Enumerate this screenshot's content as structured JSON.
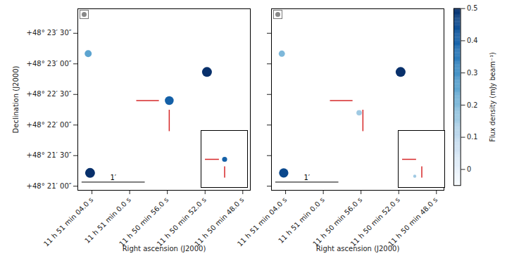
{
  "chart_data": {
    "type": "heatmap",
    "xlabel": "Right ascension (J2000)",
    "ylabel": "Declination (J2000)",
    "xlim": [
      65.5,
      47.2
    ],
    "ylim": [
      1256,
      1434
    ],
    "xticks": [
      {
        "value": 64,
        "label": "11 h 51 min 04.0 s"
      },
      {
        "value": 60,
        "label": "11 h 51 min 0.0 s"
      },
      {
        "value": 56,
        "label": "11 h 50 min 56.0 s"
      },
      {
        "value": 52,
        "label": "11 h 50 min 52.0 s"
      },
      {
        "value": 48,
        "label": "11 h 50 min 48.0 s"
      }
    ],
    "yticks": [
      {
        "value": 1410,
        "label": "+48° 23′ 30″"
      },
      {
        "value": 1380,
        "label": "+48° 23′ 00″"
      },
      {
        "value": 1350,
        "label": "+48° 22′ 30″"
      },
      {
        "value": 1320,
        "label": "+48° 22′ 00″"
      },
      {
        "value": 1290,
        "label": "+48° 21′ 30″"
      },
      {
        "value": 1260,
        "label": "+48° 21′ 00″"
      }
    ],
    "colorbar": {
      "label": "Flux density (mJy beam⁻¹)",
      "range": [
        -0.05,
        0.5
      ],
      "ticks": [
        0,
        0.1,
        0.2,
        0.3,
        0.4,
        0.5
      ]
    },
    "target": {
      "ra": 55.8,
      "dec": 1344
    },
    "scale_bar": {
      "label": "1′",
      "ra": [
        65.1,
        58.4
      ],
      "dec": 1264
    },
    "inset_half_width": {
      "ra": 1.3,
      "dec": 20
    },
    "panels": [
      {
        "tick_labels": true,
        "sources": [
          {
            "ra": 64.4,
            "dec": 1390,
            "flux": 0.25
          },
          {
            "ra": 51.8,
            "dec": 1372,
            "flux": 0.5
          },
          {
            "ra": 55.8,
            "dec": 1344,
            "flux": 0.4
          },
          {
            "ra": 64.2,
            "dec": 1273,
            "flux": 0.5
          }
        ]
      },
      {
        "tick_labels": "x",
        "sources": [
          {
            "ra": 64.4,
            "dec": 1390,
            "flux": 0.2
          },
          {
            "ra": 51.8,
            "dec": 1372,
            "flux": 0.5
          },
          {
            "ra": 56.2,
            "dec": 1332,
            "flux": 0.15
          },
          {
            "ra": 64.2,
            "dec": 1273,
            "flux": 0.45
          }
        ]
      }
    ]
  }
}
